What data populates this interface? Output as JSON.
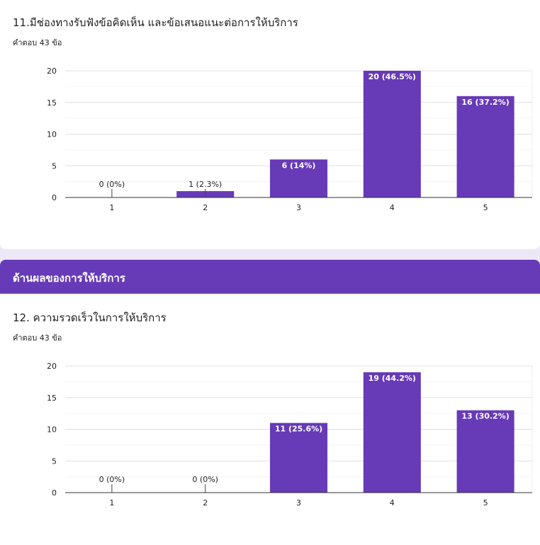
{
  "colors": {
    "bar": "#673ab7",
    "section": "#673ab7"
  },
  "section": {
    "title": "ด้านผลของการให้บริการ"
  },
  "questions": [
    {
      "title": "11.มีช่องทางรับฟังข้อคิดเห็น และข้อเสนอแนะต่อการให้บริการ",
      "responses": "คำตอบ 43 ข้อ"
    },
    {
      "title": "12. ความรวดเร็วในการให้บริการ",
      "responses": "คำตอบ 43 ข้อ"
    }
  ],
  "chart_data": [
    {
      "type": "bar",
      "categories": [
        "1",
        "2",
        "3",
        "4",
        "5"
      ],
      "values": [
        0,
        1,
        6,
        20,
        16
      ],
      "labels": [
        "0 (0%)",
        "1 (2.3%)",
        "6 (14%)",
        "20 (46.5%)",
        "16 (37.2%)"
      ],
      "ylim": [
        0,
        20
      ],
      "yticks": [
        0,
        5,
        10,
        15,
        20
      ],
      "grid": true
    },
    {
      "type": "bar",
      "categories": [
        "1",
        "2",
        "3",
        "4",
        "5"
      ],
      "values": [
        0,
        0,
        11,
        19,
        13
      ],
      "labels": [
        "0 (0%)",
        "0 (0%)",
        "11 (25.6%)",
        "19 (44.2%)",
        "13 (30.2%)"
      ],
      "ylim": [
        0,
        20
      ],
      "yticks": [
        0,
        5,
        10,
        15,
        20
      ],
      "grid": true
    }
  ]
}
